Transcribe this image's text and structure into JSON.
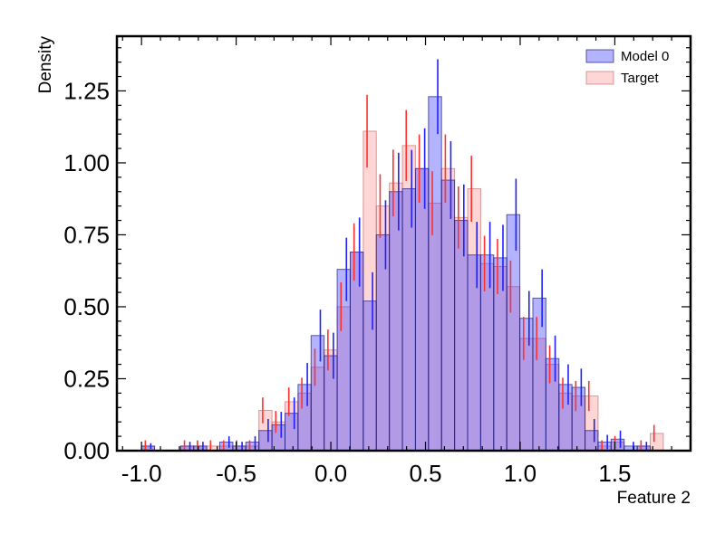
{
  "chart_data": {
    "type": "bar",
    "xlabel": "Feature 2",
    "ylabel": "Density",
    "xlim": [
      -1.13,
      1.9
    ],
    "ylim": [
      0,
      1.44
    ],
    "x_ticks": [
      -1.0,
      -0.5,
      0.0,
      0.5,
      1.0,
      1.5
    ],
    "x_tick_labels": [
      "-1.0",
      "-0.5",
      "0.0",
      "0.5",
      "1.0",
      "1.5"
    ],
    "y_ticks": [
      0.0,
      0.25,
      0.5,
      0.75,
      1.0,
      1.25
    ],
    "y_tick_labels": [
      "0.00",
      "0.25",
      "0.50",
      "0.75",
      "1.00",
      "1.25"
    ],
    "bin_width": 0.0689,
    "bin_edges_start": -1.0,
    "bin_count": 40,
    "legend_position": "top-right",
    "series": [
      {
        "name": "Model 0",
        "color": "#4040ff",
        "values": [
          0.016,
          0,
          0,
          0.016,
          0.016,
          0,
          0.03,
          0.016,
          0.03,
          0.07,
          0.09,
          0.13,
          0.23,
          0.4,
          0.33,
          0.63,
          0.69,
          0.52,
          0.75,
          0.9,
          0.91,
          0.98,
          1.23,
          0.94,
          0.8,
          0.68,
          0.68,
          0.67,
          0.82,
          0.46,
          0.53,
          0.32,
          0.23,
          0.22,
          0.07,
          0.03,
          0.04,
          0.016,
          0.016,
          0
        ],
        "errors": [
          0.01,
          0,
          0,
          0.015,
          0.015,
          0,
          0.02,
          0.015,
          0.02,
          0.04,
          0.045,
          0.055,
          0.075,
          0.09,
          0.08,
          0.11,
          0.12,
          0.1,
          0.12,
          0.135,
          0.135,
          0.14,
          0.13,
          0.135,
          0.125,
          0.115,
          0.115,
          0.115,
          0.125,
          0.095,
          0.1,
          0.08,
          0.07,
          0.065,
          0.04,
          0.025,
          0.03,
          0.015,
          0.015,
          0
        ]
      },
      {
        "name": "Target",
        "color": "#ff8080",
        "values": [
          0.016,
          0,
          0,
          0.016,
          0.016,
          0.016,
          0.016,
          0.016,
          0.016,
          0.14,
          0.1,
          0.17,
          0.2,
          0.29,
          0.35,
          0.5,
          0.69,
          1.11,
          0.85,
          0.93,
          1.06,
          0.98,
          0.86,
          0.98,
          0.81,
          0.91,
          0.65,
          0.64,
          0.57,
          0.39,
          0.39,
          0.3,
          0.2,
          0.19,
          0.19,
          0.016,
          0.03,
          0,
          0.016,
          0.06
        ]
      }
    ]
  }
}
